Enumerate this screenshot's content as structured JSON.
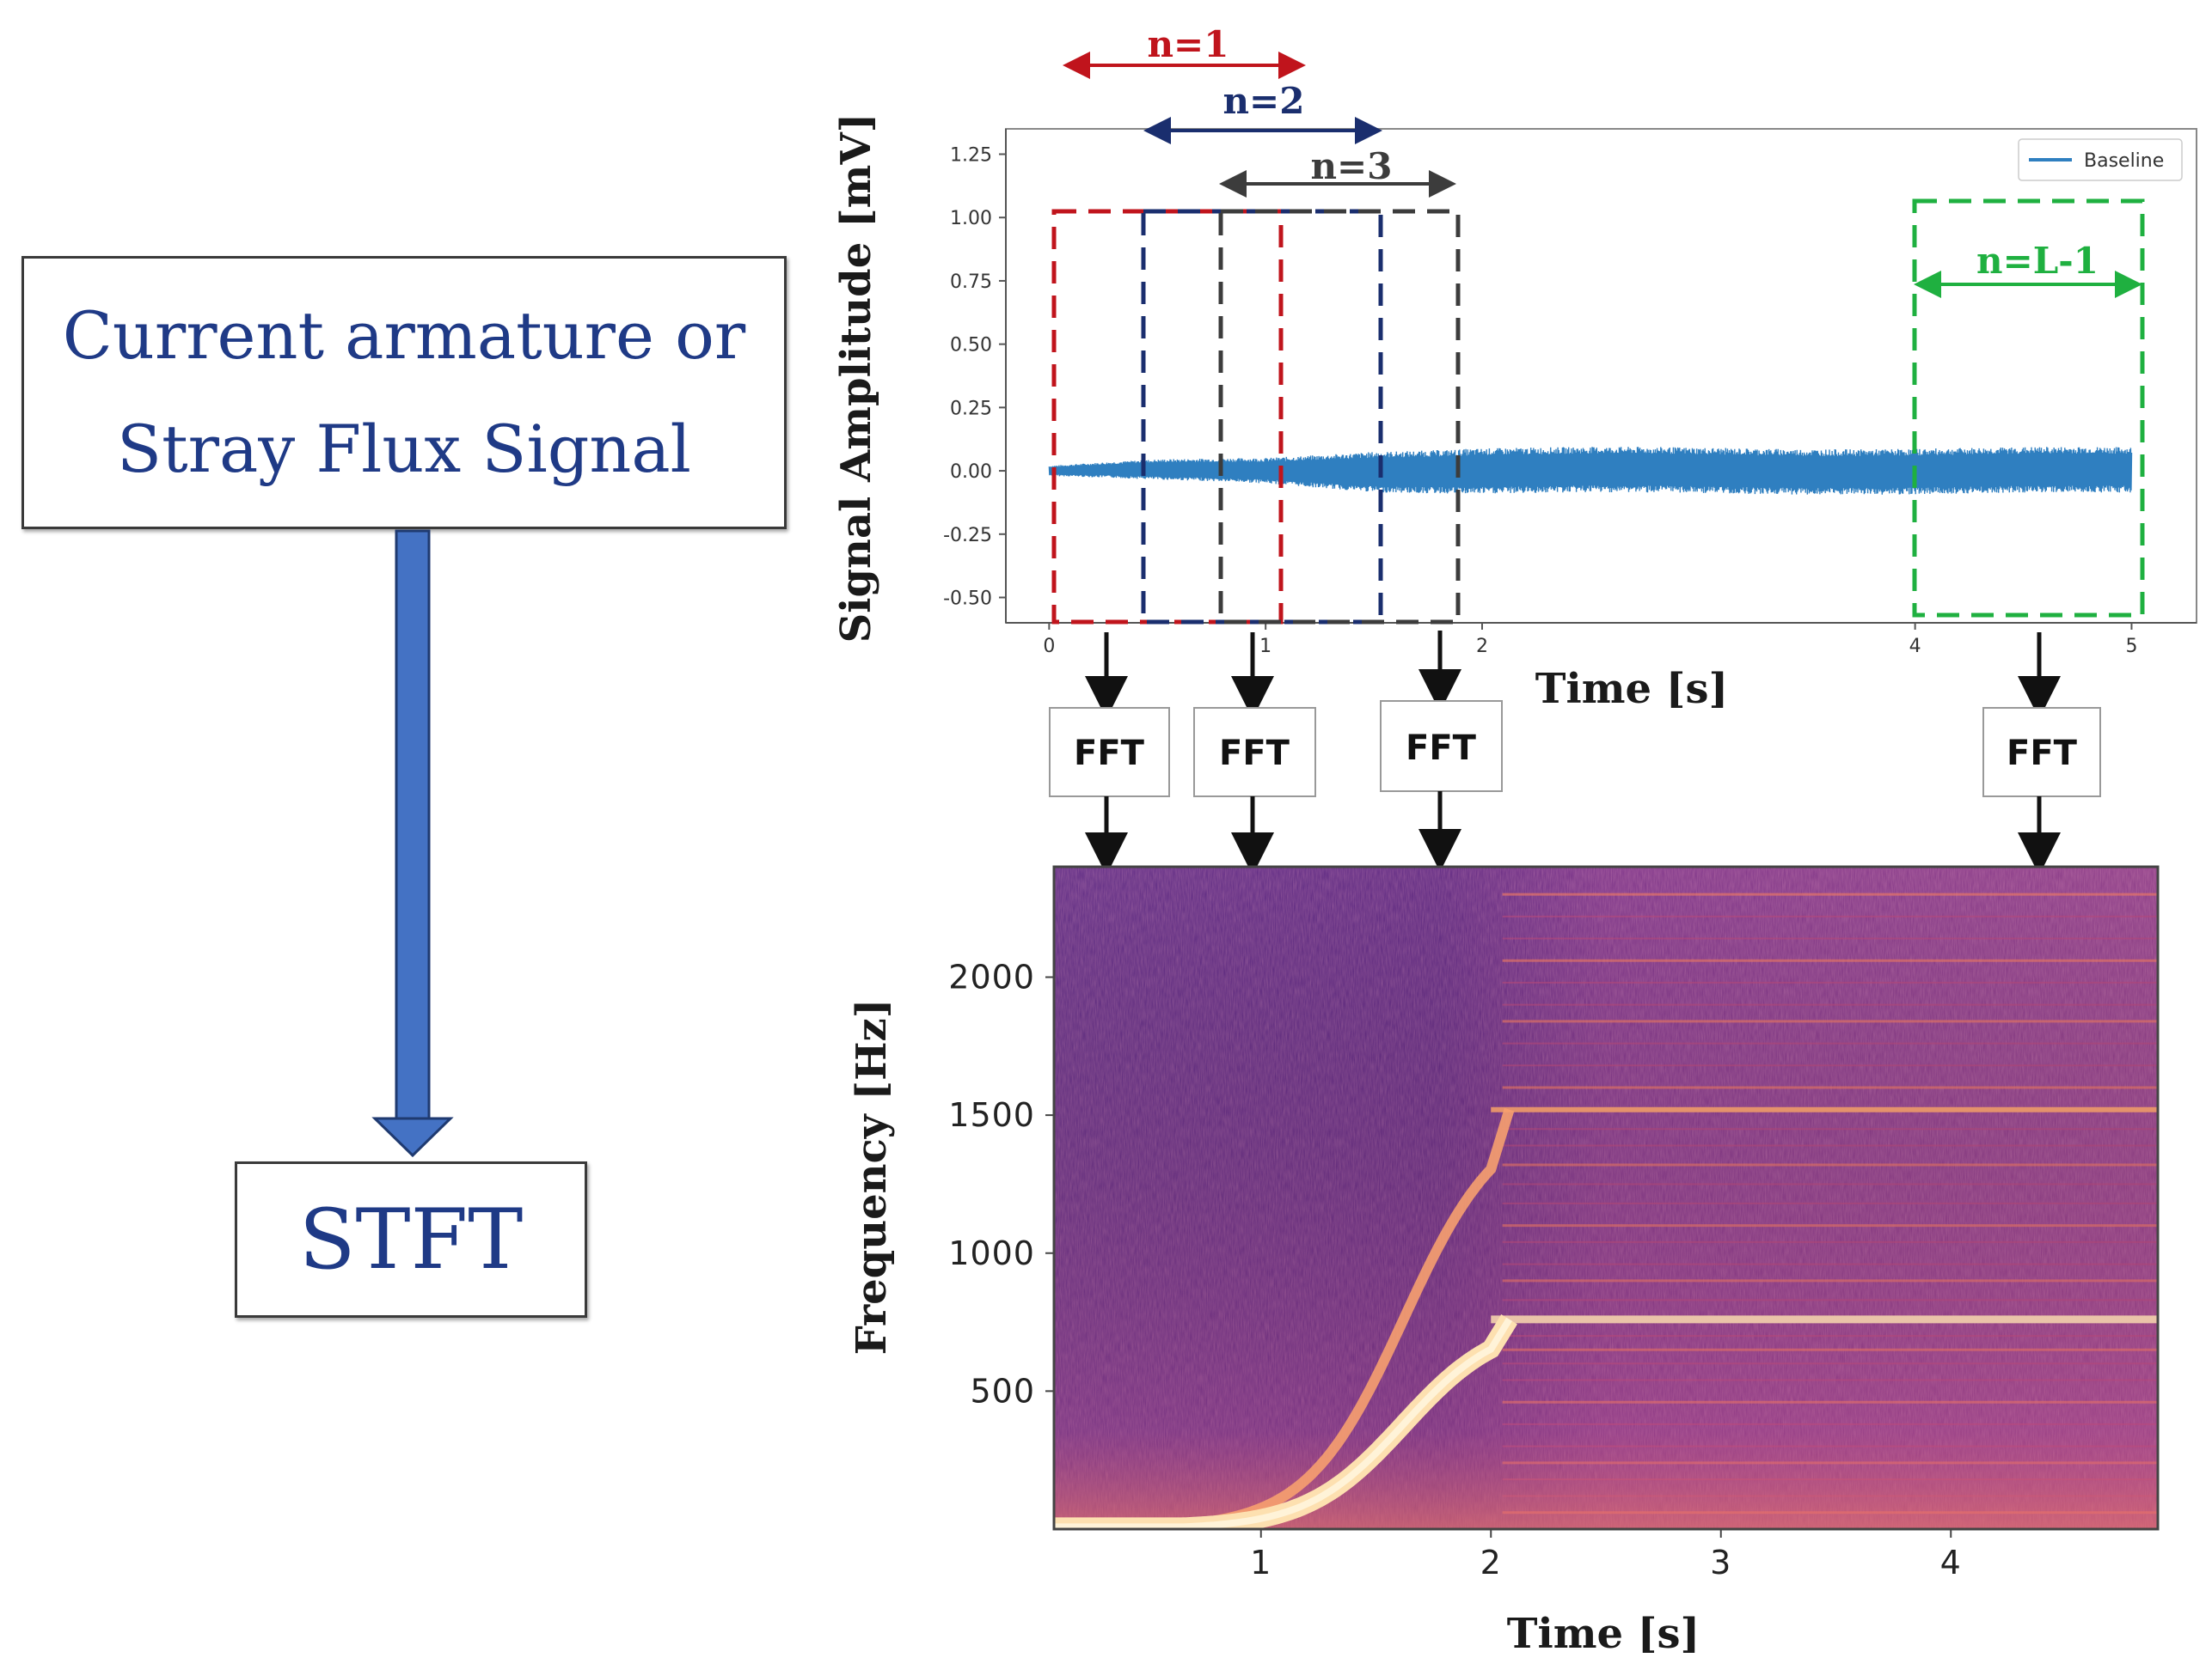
{
  "source_box": {
    "line1": "Current armature or",
    "line2": "Stray Flux Signal"
  },
  "target_box": {
    "label": "STFT"
  },
  "fft_label": "FFT",
  "windows": [
    {
      "label": "n=1",
      "color": "#c0141c"
    },
    {
      "label": "n=2",
      "color": "#1a2e6e"
    },
    {
      "label": "n=3",
      "color": "#3c3c3c"
    },
    {
      "label": "n=L-1",
      "color": "#1fb040"
    }
  ],
  "colors": {
    "flow_arrow": "#4472c4",
    "signal": "#2f7fc0",
    "box_text": "#1f3a86"
  },
  "chart_data": [
    {
      "type": "line",
      "title": "",
      "xlabel": "Time [s]",
      "ylabel": "Signal Amplitude [mV]",
      "xlim": [
        -0.2,
        5.3
      ],
      "ylim": [
        -0.6,
        1.35
      ],
      "x_ticks": [
        "0",
        "1",
        "2",
        "4",
        "5"
      ],
      "y_ticks": [
        "1.25",
        "1.00",
        "0.75",
        "0.50",
        "0.25",
        "0.00",
        "-0.25",
        "-0.50"
      ],
      "legend": "Baseline",
      "series": [
        {
          "name": "Baseline",
          "x": [
            0,
            0.5,
            1.0,
            1.5,
            2.0,
            3.0,
            4.0,
            5.0
          ],
          "envelope": [
            0.02,
            0.04,
            0.05,
            0.08,
            0.09,
            0.09,
            0.09,
            0.09
          ]
        }
      ]
    },
    {
      "type": "heatmap",
      "title": "",
      "xlabel": "Time [s]",
      "ylabel": "Frequency [Hz]",
      "xlim": [
        0.1,
        4.9
      ],
      "ylim": [
        0,
        2400
      ],
      "x_ticks": [
        "1",
        "2",
        "3",
        "4"
      ],
      "y_ticks": [
        "2000",
        "1500",
        "1000",
        "500"
      ],
      "harmonics_hz": [
        760,
        1520
      ],
      "steady_state_start_s": 2.0
    }
  ]
}
